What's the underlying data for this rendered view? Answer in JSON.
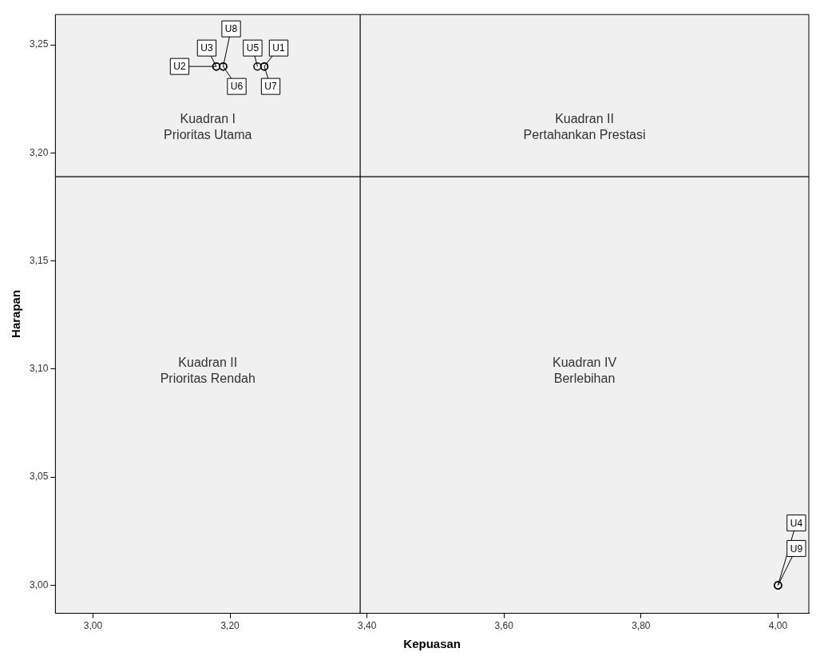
{
  "chart_data": {
    "type": "scatter",
    "xlabel": "Kepuasan",
    "ylabel": "Harapan",
    "x": [
      3.18,
      3.18,
      3.19,
      3.19,
      3.24,
      3.25,
      3.25,
      4.0,
      4.0
    ],
    "values": [
      3.24,
      3.24,
      3.24,
      3.24,
      3.24,
      3.24,
      3.24,
      3.0,
      3.0
    ],
    "color": "#000000",
    "marker": "circle",
    "xlim": [
      2.945,
      4.045
    ],
    "ylim": [
      2.987,
      3.264
    ],
    "xticks": [
      {
        "value": 3.0,
        "label": "3,00"
      },
      {
        "value": 3.2,
        "label": "3,20"
      },
      {
        "value": 3.4,
        "label": "3,40"
      },
      {
        "value": 3.6,
        "label": "3,60"
      },
      {
        "value": 3.8,
        "label": "3,80"
      },
      {
        "value": 4.0,
        "label": "4,00"
      }
    ],
    "yticks": [
      {
        "value": 3.0,
        "label": "3,00"
      },
      {
        "value": 3.05,
        "label": "3,05"
      },
      {
        "value": 3.1,
        "label": "3,10"
      },
      {
        "value": 3.15,
        "label": "3,15"
      },
      {
        "value": 3.2,
        "label": "3,20"
      },
      {
        "value": 3.25,
        "label": "3,25"
      }
    ],
    "ref_lines": [
      {
        "axis": "x",
        "value": 3.39,
        "color": "#000000"
      },
      {
        "axis": "y",
        "value": 3.189,
        "color": "#000000"
      }
    ],
    "annotations": [
      {
        "text": "U2",
        "x": 3.18,
        "y": 3.24
      },
      {
        "text": "U3",
        "x": 3.18,
        "y": 3.24
      },
      {
        "text": "U8",
        "x": 3.19,
        "y": 3.24
      },
      {
        "text": "U6",
        "x": 3.19,
        "y": 3.24
      },
      {
        "text": "U5",
        "x": 3.24,
        "y": 3.24
      },
      {
        "text": "U1",
        "x": 3.25,
        "y": 3.24
      },
      {
        "text": "U7",
        "x": 3.25,
        "y": 3.24
      },
      {
        "text": "U4",
        "x": 4.0,
        "y": 3.0
      },
      {
        "text": "U9",
        "x": 4.0,
        "y": 3.0
      },
      "Kuadran I\nPrioritas Utama",
      "Kuadran II\nPertahankan Prestasi",
      "Kuadran II\nPrioritas Rendah",
      "Kuadran IV\nBerlebihan"
    ]
  }
}
